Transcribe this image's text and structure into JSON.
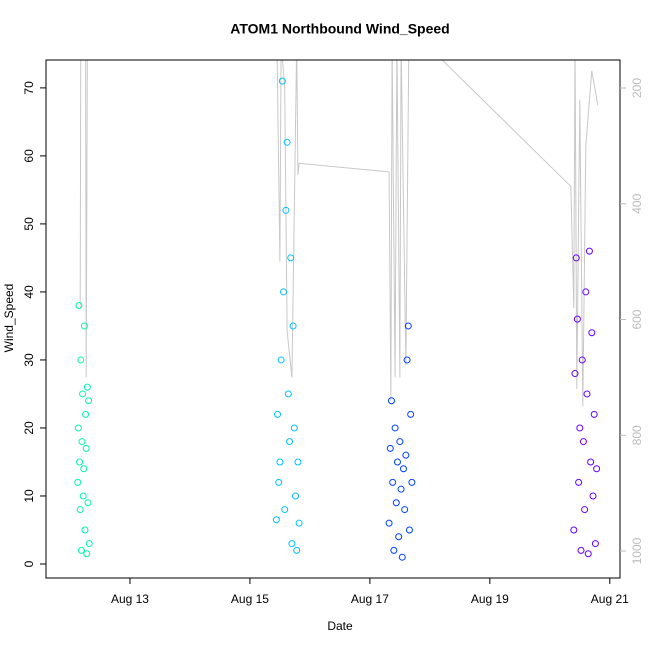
{
  "chart_data": {
    "type": "scatter",
    "title": "ATOM1 Northbound Wind_Speed",
    "x_label": "Date",
    "y_label": "Wind_Speed",
    "xlim": [
      11.6,
      21.17
    ],
    "xticks": [
      {
        "value": 13,
        "label": "Aug 13"
      },
      {
        "value": 15,
        "label": "Aug 15"
      },
      {
        "value": 17,
        "label": "Aug 17"
      },
      {
        "value": 19,
        "label": "Aug 19"
      },
      {
        "value": 21,
        "label": "Aug 21"
      }
    ],
    "ylim": [
      -2.06,
      74.1
    ],
    "yticks": [
      0,
      10,
      20,
      30,
      40,
      50,
      60,
      70
    ],
    "y2lim": [
      1046.6,
      151.6
    ],
    "y2ticks": [
      200,
      400,
      600,
      800,
      1000
    ],
    "series": [
      {
        "type": "line",
        "axis": "y2",
        "color": "#c8c8c8",
        "x": [
          12.17,
          12.18,
          12.26,
          12.27,
          12.29,
          15.45,
          15.5,
          15.52,
          15.58,
          15.62,
          15.7,
          15.78,
          15.8,
          15.82,
          17.32,
          17.35,
          17.37,
          17.42,
          17.45,
          17.5,
          17.52,
          17.6,
          17.65,
          17.7,
          20.35,
          20.4,
          20.42,
          20.45,
          20.5,
          20.55,
          20.6,
          20.7,
          20.8
        ],
        "values": [
          580,
          120,
          120,
          700,
          120,
          120,
          500,
          120,
          200,
          620,
          700,
          120,
          350,
          330,
          345,
          740,
          120,
          700,
          120,
          700,
          120,
          680,
          120,
          100,
          370,
          580,
          120,
          720,
          220,
          750,
          300,
          170,
          230
        ]
      },
      {
        "color": "#00f5b0",
        "x": [
          12.13,
          12.14,
          12.15,
          12.16,
          12.17,
          12.18,
          12.19,
          12.2,
          12.21,
          12.22,
          12.23,
          12.24,
          12.25,
          12.26,
          12.27,
          12.28,
          12.29,
          12.3,
          12.31,
          12.32
        ],
        "values": [
          12,
          20,
          38,
          15,
          8,
          30,
          2,
          18,
          25,
          10,
          14,
          35,
          5,
          22,
          17,
          1.5,
          26,
          9,
          24,
          3
        ]
      },
      {
        "color": "#00bfff",
        "x": [
          15.44,
          15.46,
          15.48,
          15.5,
          15.52,
          15.54,
          15.56,
          15.58,
          15.6,
          15.62,
          15.64,
          15.66,
          15.68,
          15.7,
          15.72,
          15.74,
          15.76,
          15.78,
          15.8,
          15.82
        ],
        "values": [
          6.5,
          22,
          12,
          15,
          30,
          71,
          40,
          8,
          52,
          62,
          25,
          18,
          45,
          3,
          35,
          20,
          10,
          2,
          15,
          6
        ]
      },
      {
        "color": "#0040ff",
        "x": [
          17.32,
          17.34,
          17.36,
          17.38,
          17.4,
          17.42,
          17.44,
          17.46,
          17.48,
          17.5,
          17.52,
          17.54,
          17.56,
          17.58,
          17.6,
          17.62,
          17.64,
          17.66,
          17.68,
          17.7
        ],
        "values": [
          6,
          17,
          24,
          12,
          2,
          20,
          9,
          15,
          4,
          18,
          11,
          1,
          14,
          8,
          16,
          30,
          35,
          5,
          22,
          12
        ]
      },
      {
        "color": "#6a00ff",
        "x": [
          20.4,
          20.42,
          20.44,
          20.46,
          20.48,
          20.5,
          20.52,
          20.54,
          20.56,
          20.58,
          20.6,
          20.62,
          20.64,
          20.66,
          20.68,
          20.7,
          20.72,
          20.74,
          20.76,
          20.78
        ],
        "values": [
          5,
          28,
          45,
          36,
          12,
          20,
          2,
          30,
          18,
          8,
          40,
          25,
          1.5,
          46,
          15,
          34,
          10,
          22,
          3,
          14
        ]
      }
    ]
  }
}
